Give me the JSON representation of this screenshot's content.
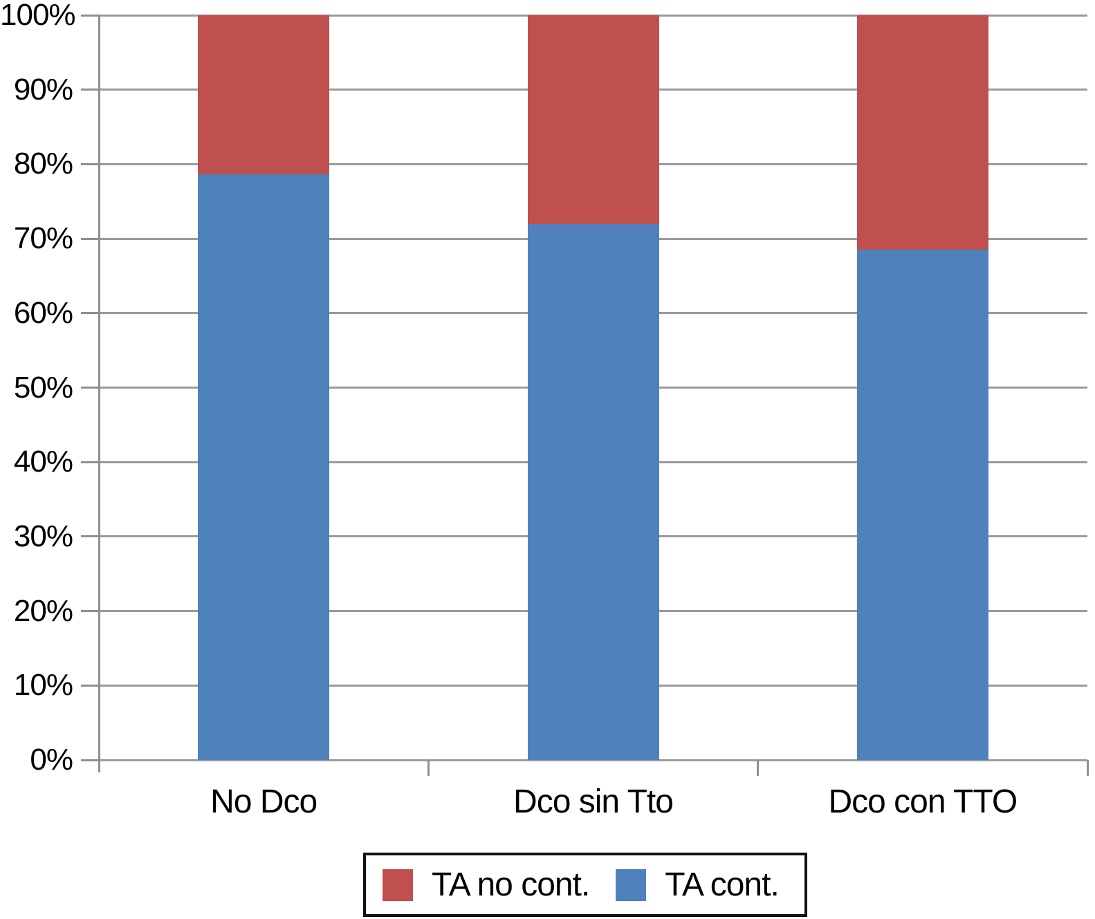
{
  "chart_data": {
    "type": "bar",
    "stacked": true,
    "title": "",
    "xlabel": "",
    "ylabel": "",
    "categories": [
      "No Dco",
      "Dco sin Tto",
      "Dco con TTO"
    ],
    "series": [
      {
        "name": "TA cont.",
        "color": "#4f81bd",
        "values": [
          78.6,
          72.0,
          68.5
        ]
      },
      {
        "name": "TA no cont.",
        "color": "#c0504d",
        "values": [
          21.4,
          28.0,
          31.5
        ]
      }
    ],
    "ylim": [
      0,
      100
    ],
    "y_tick_step": 10,
    "y_tick_labels": [
      "0%",
      "10%",
      "20%",
      "30%",
      "40%",
      "50%",
      "60%",
      "70%",
      "80%",
      "90%",
      "100%"
    ],
    "grid": "horizontal",
    "legend_position": "bottom",
    "legend": [
      {
        "label": "TA no cont.",
        "color": "#c0504d"
      },
      {
        "label": "TA cont.",
        "color": "#4f81bd"
      }
    ]
  },
  "colors": {
    "background": "#ffffff",
    "gridline": "#9a9a9a",
    "axis": "#8f8f8f",
    "text": "#000000",
    "legend_border": "#111111"
  }
}
